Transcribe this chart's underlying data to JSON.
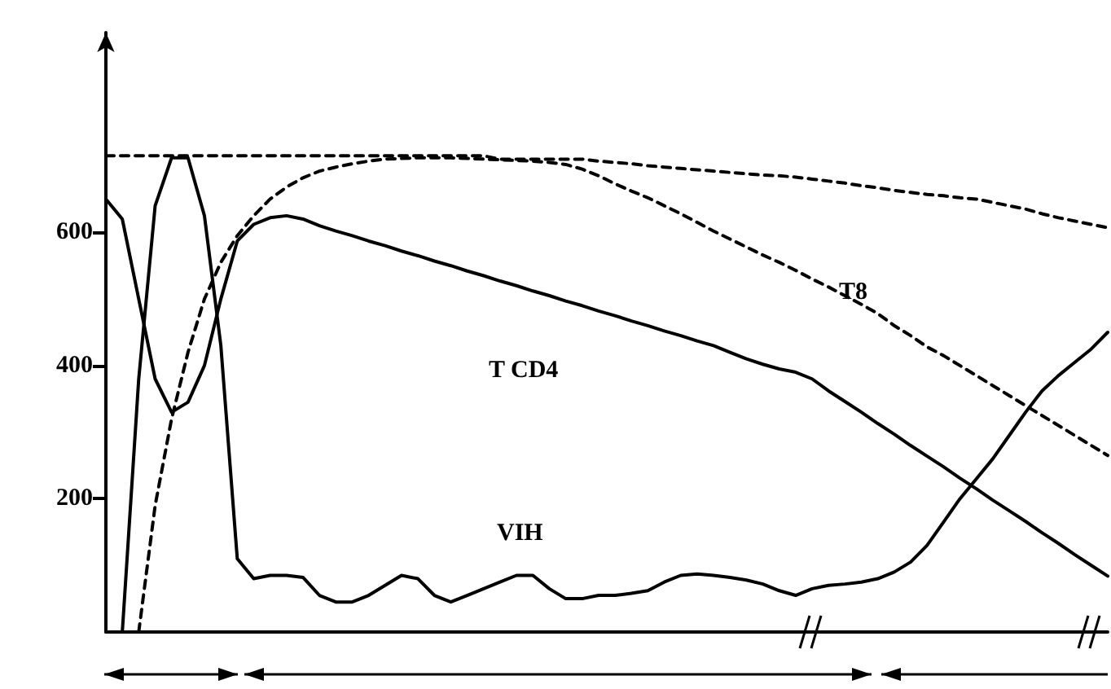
{
  "chart_data": {
    "type": "line",
    "categories": [
      null,
      null,
      null,
      null,
      null,
      null,
      null,
      null,
      null,
      null,
      null,
      null,
      null,
      null,
      null,
      null,
      null,
      null,
      null,
      null,
      null,
      null,
      null,
      null,
      null,
      null,
      null,
      null,
      null,
      null,
      null,
      null,
      null,
      null,
      null,
      null,
      null,
      null,
      null,
      null,
      null,
      null,
      null,
      null,
      null,
      null,
      null,
      null,
      null,
      null,
      null,
      null,
      null,
      null,
      null,
      null,
      null,
      null,
      null,
      null,
      null,
      null
    ],
    "ylim": [
      0,
      900
    ],
    "yticks": [
      200,
      400,
      600
    ],
    "tick_labels": "y",
    "grid": false,
    "legend": false,
    "marker": "none",
    "series": [
      {
        "name": "T CD4",
        "color": "#000000",
        "line_style": "solid",
        "values": [
          650,
          620,
          500,
          380,
          330,
          345,
          400,
          500,
          587,
          612,
          622,
          625,
          620,
          610,
          602,
          595,
          587,
          580,
          572,
          565,
          557,
          550,
          542,
          535,
          527,
          520,
          512,
          505,
          497,
          490,
          482,
          475,
          467,
          460,
          452,
          445,
          437,
          430,
          420,
          410,
          402,
          395,
          390,
          380,
          362,
          346,
          330,
          313,
          297,
          280,
          264,
          248,
          231,
          215,
          198,
          182,
          166,
          149,
          133,
          116,
          100,
          84
        ]
      },
      {
        "name": "VIH",
        "color": "#000000",
        "line_style": "solid",
        "values": [
          null,
          0,
          380,
          640,
          712,
          712,
          625,
          430,
          110,
          80,
          85,
          85,
          82,
          55,
          45,
          45,
          55,
          70,
          85,
          80,
          55,
          45,
          55,
          65,
          75,
          85,
          85,
          65,
          50,
          50,
          55,
          55,
          58,
          62,
          75,
          85,
          87,
          85,
          82,
          78,
          72,
          62,
          55,
          65,
          70,
          72,
          75,
          80,
          90,
          105,
          130,
          165,
          200,
          230,
          260,
          295,
          330,
          362,
          385,
          405,
          425,
          450
        ]
      },
      {
        "color": "#000000",
        "line_style": "dashed",
        "values": [
          715,
          715,
          715,
          715,
          715,
          715,
          715,
          715,
          715,
          715,
          715,
          715,
          715,
          715,
          715,
          715,
          715,
          715,
          715,
          715,
          715,
          715,
          715,
          715,
          710,
          710,
          710,
          710,
          710,
          710,
          707,
          705,
          703,
          700,
          698,
          696,
          694,
          692,
          690,
          688,
          686,
          685,
          683,
          680,
          677,
          674,
          670,
          667,
          663,
          660,
          657,
          655,
          652,
          650,
          645,
          640,
          635,
          628,
          622,
          617,
          612,
          607
        ]
      },
      {
        "name": "T8",
        "color": "#000000",
        "line_style": "dashed",
        "values": [
          null,
          null,
          0,
          190,
          320,
          420,
          500,
          555,
          595,
          625,
          650,
          668,
          682,
          692,
          698,
          703,
          707,
          710,
          711,
          712,
          712,
          712,
          711,
          710,
          709,
          708,
          707,
          705,
          702,
          695,
          685,
          673,
          662,
          652,
          640,
          628,
          615,
          602,
          590,
          578,
          566,
          555,
          543,
          530,
          518,
          505,
          492,
          478,
          460,
          445,
          428,
          415,
          400,
          385,
          370,
          355,
          340,
          325,
          310,
          295,
          280,
          265
        ]
      }
    ]
  }
}
